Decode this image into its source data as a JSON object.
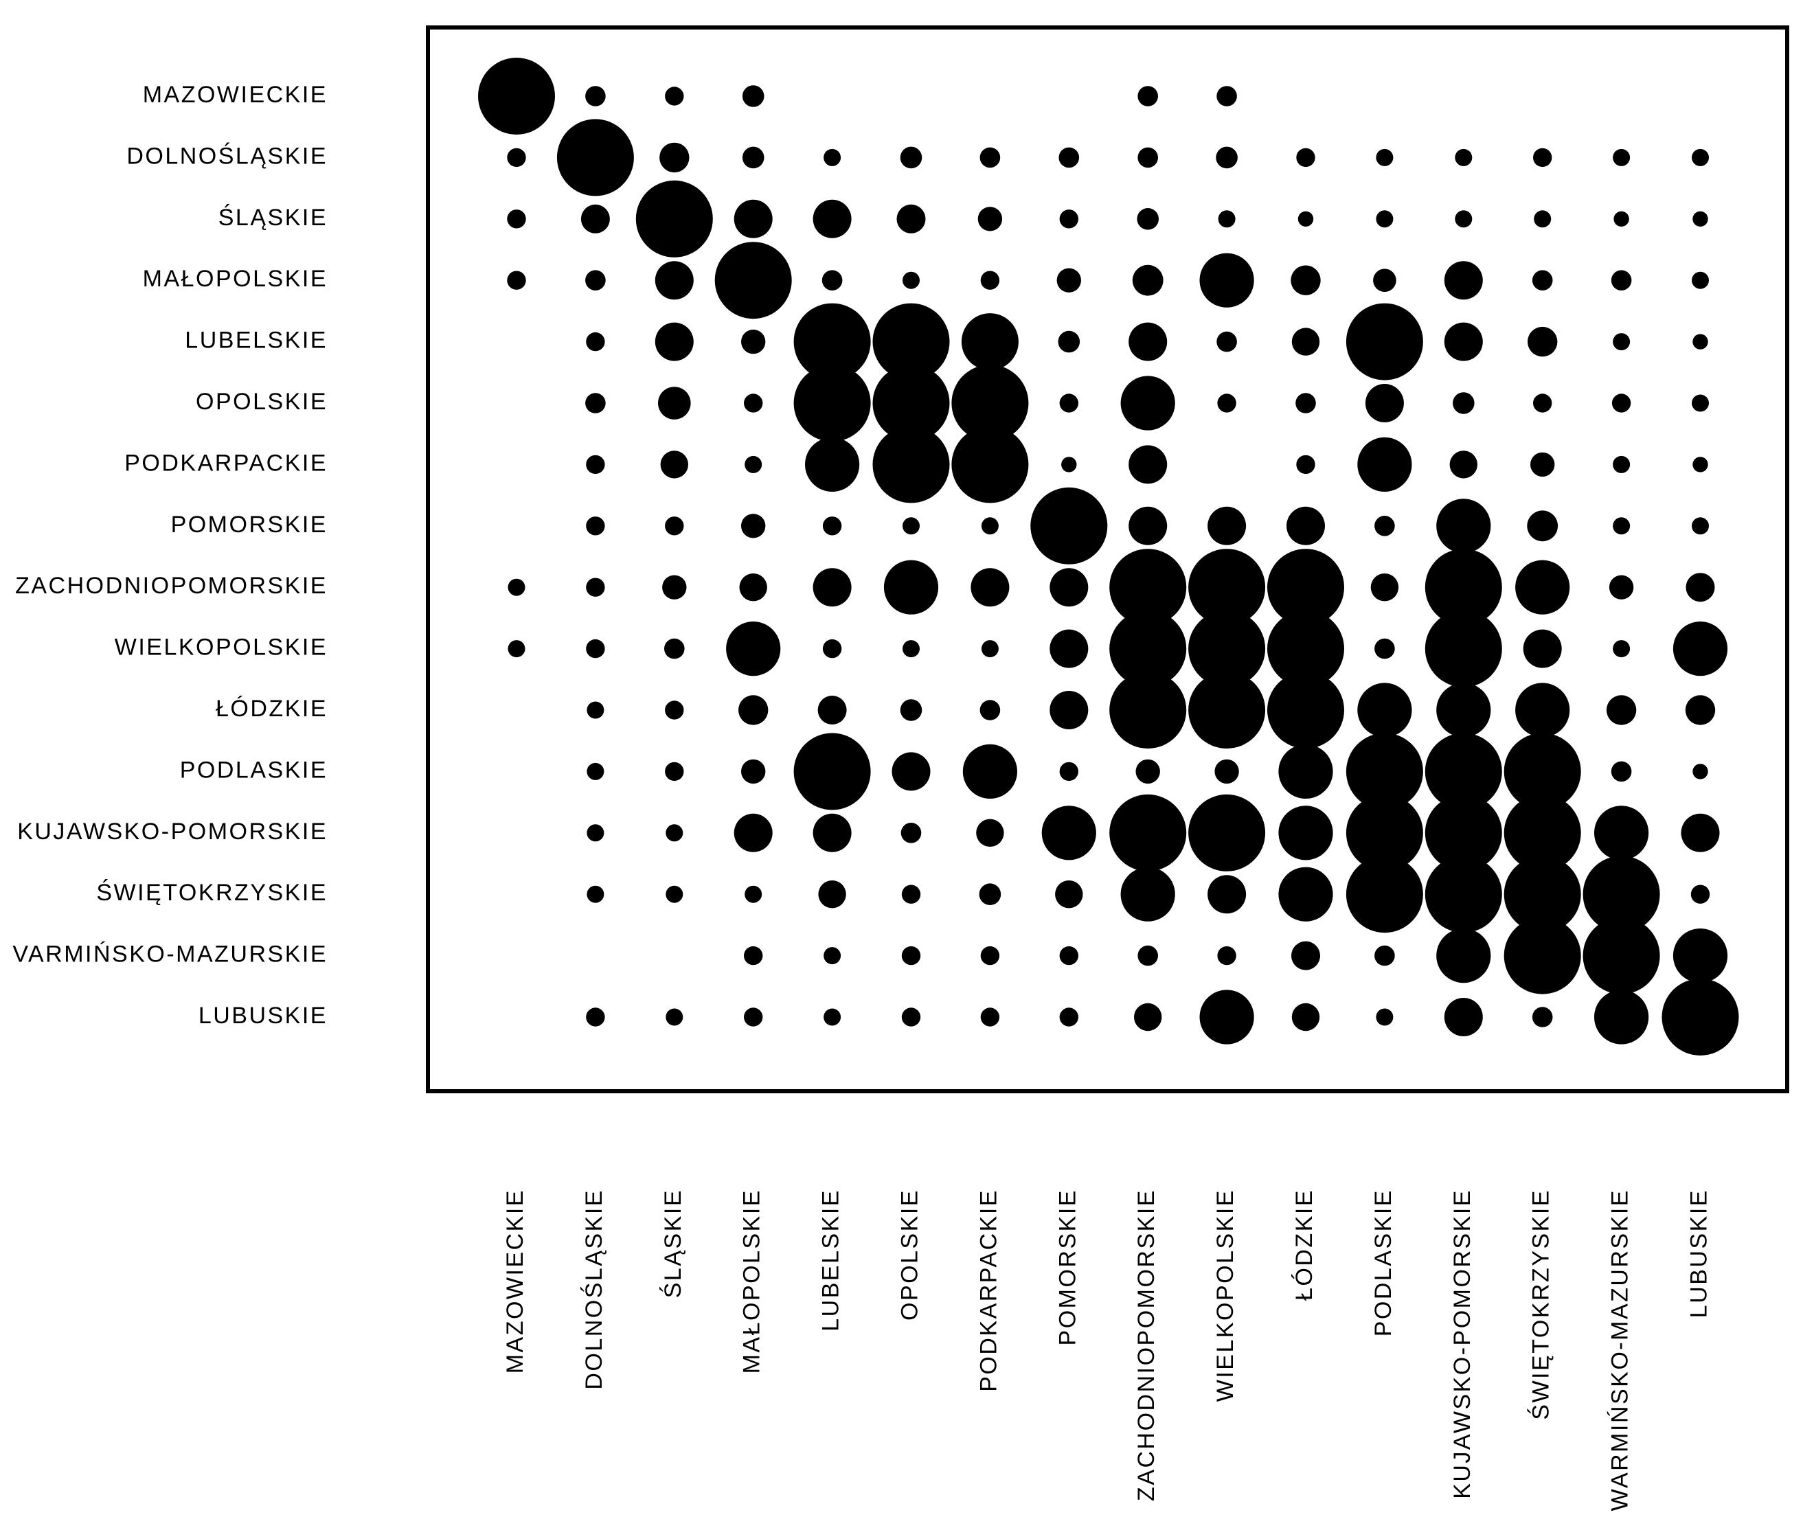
{
  "chart_data": {
    "type": "bubble-matrix",
    "title": "",
    "xlabel": "",
    "ylabel": "",
    "row_labels": [
      "MAZOWIECKIE",
      "DOLNOŚLĄSKIE",
      "ŚLĄSKIE",
      "MAŁOPOLSKIE",
      "LUBELSKIE",
      "OPOLSKIE",
      "PODKARPACKIE",
      "POMORSKIE",
      "ZACHODNIOPOMORSKIE",
      "WIELKOPOLSKIE",
      "ŁÓDZKIE",
      "PODLASKIE",
      "KUJAWSKO-POMORSKIE",
      "ŚWIĘTOKRZYSKIE",
      "VARMIŃSKO-MAZURSKIE",
      "LUBUSKIE"
    ],
    "column_labels": [
      "MAZOWIECKIE",
      "DOLNOŚLĄSKIE",
      "ŚLĄSKIE",
      "MAŁOPOLSKIE",
      "LUBELSKIE",
      "OPOLSKIE",
      "PODKARPACKIE",
      "POMORSKIE",
      "ZACHODNIOPOMORSKIE",
      "WIELKOPOLSKIE",
      "ŁÓDZKIE",
      "PODLASKIE",
      "KUJAWSKO-POMORSKIE",
      "ŚWIĘTOKRZYSKIE",
      "WARMIŃSKO-MAZURSKIE",
      "LUBUSKIE"
    ],
    "value_range": [
      0,
      1
    ],
    "values": [
      [
        1.0,
        0.07,
        0.06,
        0.08,
        0,
        0,
        0,
        0,
        0.07,
        0.07,
        0,
        0,
        0,
        0,
        0,
        0
      ],
      [
        0.06,
        1.0,
        0.15,
        0.08,
        0.05,
        0.08,
        0.07,
        0.07,
        0.07,
        0.08,
        0.06,
        0.05,
        0.05,
        0.06,
        0.05,
        0.05
      ],
      [
        0.06,
        0.14,
        1.0,
        0.25,
        0.25,
        0.14,
        0.1,
        0.06,
        0.08,
        0.05,
        0.04,
        0.05,
        0.05,
        0.05,
        0.04,
        0.04
      ],
      [
        0.06,
        0.07,
        0.25,
        1.0,
        0.07,
        0.05,
        0.06,
        0.1,
        0.16,
        0.5,
        0.15,
        0.09,
        0.25,
        0.07,
        0.07,
        0.05
      ],
      [
        0,
        0.06,
        0.25,
        0.1,
        1.0,
        1.0,
        0.55,
        0.08,
        0.25,
        0.07,
        0.13,
        1.0,
        0.25,
        0.15,
        0.05,
        0.04
      ],
      [
        0,
        0.07,
        0.18,
        0.06,
        1.0,
        1.0,
        1.0,
        0.06,
        0.5,
        0.06,
        0.07,
        0.25,
        0.08,
        0.06,
        0.06,
        0.05
      ],
      [
        0,
        0.06,
        0.13,
        0.05,
        0.5,
        1.0,
        1.0,
        0.04,
        0.25,
        0,
        0.06,
        0.5,
        0.13,
        0.1,
        0.05,
        0.04
      ],
      [
        0,
        0.06,
        0.06,
        0.1,
        0.06,
        0.05,
        0.05,
        1.0,
        0.25,
        0.25,
        0.25,
        0.07,
        0.5,
        0.16,
        0.05,
        0.05
      ],
      [
        0.05,
        0.06,
        0.1,
        0.13,
        0.25,
        0.5,
        0.25,
        0.25,
        1.0,
        1.0,
        1.0,
        0.13,
        1.0,
        0.5,
        0.1,
        0.14
      ],
      [
        0.05,
        0.06,
        0.07,
        0.5,
        0.06,
        0.05,
        0.05,
        0.25,
        1.0,
        1.0,
        1.0,
        0.07,
        1.0,
        0.25,
        0.05,
        0.5
      ],
      [
        0,
        0.05,
        0.06,
        0.15,
        0.14,
        0.08,
        0.07,
        0.25,
        1.0,
        1.0,
        1.0,
        0.5,
        0.5,
        0.5,
        0.15,
        0.15
      ],
      [
        0,
        0.05,
        0.06,
        0.1,
        1.0,
        0.25,
        0.5,
        0.06,
        0.1,
        0.1,
        0.5,
        1.0,
        1.0,
        1.0,
        0.07,
        0.04
      ],
      [
        0,
        0.05,
        0.05,
        0.25,
        0.25,
        0.07,
        0.13,
        0.5,
        1.0,
        1.0,
        0.5,
        1.0,
        1.0,
        1.0,
        0.5,
        0.25
      ],
      [
        0,
        0.05,
        0.05,
        0.05,
        0.13,
        0.06,
        0.08,
        0.13,
        0.5,
        0.25,
        0.5,
        1.0,
        1.0,
        1.0,
        1.0,
        0.06
      ],
      [
        0,
        0,
        0,
        0.06,
        0.05,
        0.06,
        0.06,
        0.06,
        0.07,
        0.06,
        0.14,
        0.07,
        0.5,
        1.0,
        1.0,
        0.5
      ],
      [
        0,
        0.06,
        0.05,
        0.06,
        0.05,
        0.06,
        0.06,
        0.06,
        0.13,
        0.5,
        0.13,
        0.05,
        0.25,
        0.07,
        0.5,
        1.0
      ]
    ]
  }
}
